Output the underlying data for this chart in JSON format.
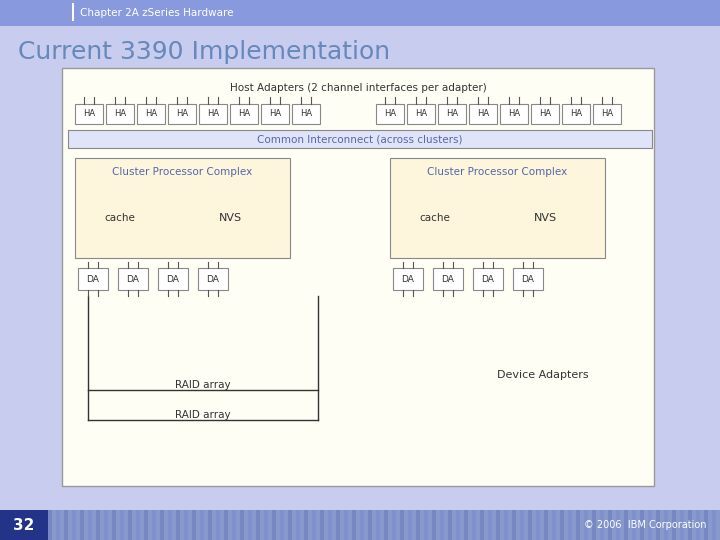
{
  "title": "Current 3390 Implementation",
  "header_label": "Chapter 2A zSeries Hardware",
  "slide_bg": "#c8ccee",
  "header_bg": "#7788dd",
  "title_color": "#6688bb",
  "box_fill": "#fffef5",
  "cpc_fill": "#fdf5dc",
  "ha_fill": "#ffffff",
  "interconnect_fill": "#e0e4f8",
  "border_color": "#888888",
  "text_dark": "#333333",
  "text_blue": "#5566aa",
  "footer_text": "© 2006  IBM Corporation",
  "page_num": "32",
  "host_adapters_label": "Host Adapters (2 channel interfaces per adapter)",
  "interconnect_label": "Common Interconnect (across clusters)",
  "cluster_label": "Cluster Processor Complex",
  "cache_label": "cache",
  "nvs_label": "NVS",
  "da_label": "DA",
  "ha_label": "HA",
  "raid1_label": "RAID array",
  "raid2_label": "RAID array",
  "device_adapters_label": "Device Adapters"
}
